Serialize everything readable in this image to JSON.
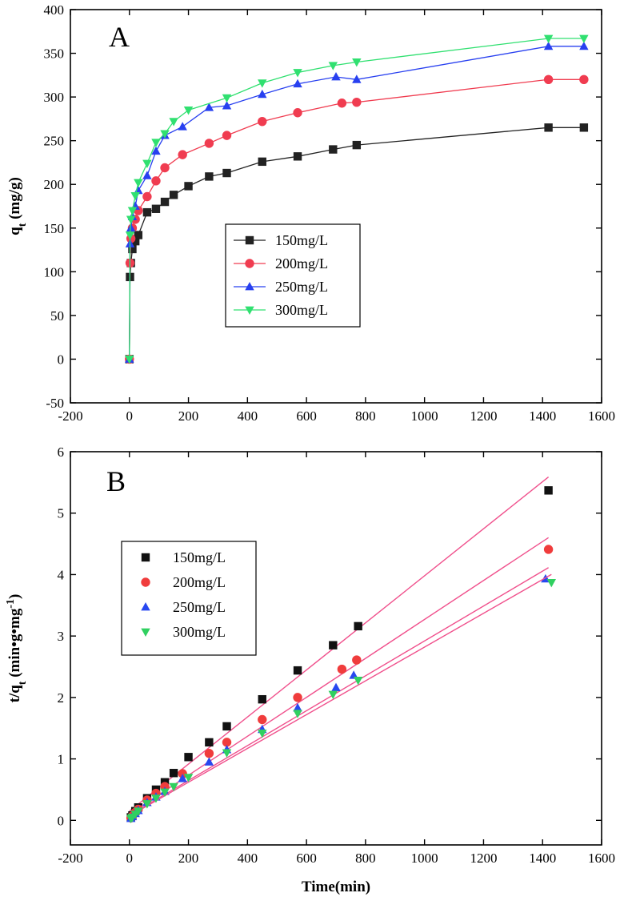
{
  "chart_data": [
    {
      "panel_label": "A",
      "type": "line",
      "xlabel": "",
      "ylabel_base": "q",
      "ylabel_sub": "t",
      "ylabel_unit": " (mg/g)",
      "xlim": [
        -200,
        1600
      ],
      "ylim": [
        -50,
        400
      ],
      "xticks": [
        -200,
        0,
        200,
        400,
        600,
        800,
        1000,
        1200,
        1400,
        1600
      ],
      "yticks": [
        -50,
        0,
        50,
        100,
        150,
        200,
        250,
        300,
        350,
        400
      ],
      "legend_position": "center",
      "series": [
        {
          "name": "150mg/L",
          "color": "#222222",
          "marker": "square",
          "x": [
            0,
            2,
            5,
            10,
            20,
            30,
            60,
            90,
            120,
            150,
            200,
            270,
            330,
            450,
            570,
            690,
            770,
            1420,
            1540
          ],
          "y": [
            0,
            94,
            110,
            126,
            135,
            142,
            168,
            172,
            180,
            188,
            198,
            209,
            213,
            226,
            232,
            240,
            245,
            265,
            265
          ]
        },
        {
          "name": "200mg/L",
          "color": "#f03c50",
          "marker": "circle",
          "x": [
            0,
            2,
            5,
            10,
            20,
            30,
            60,
            90,
            120,
            180,
            270,
            330,
            450,
            570,
            720,
            770,
            1420,
            1540
          ],
          "y": [
            0,
            110,
            138,
            150,
            160,
            170,
            186,
            204,
            219,
            234,
            247,
            256,
            272,
            282,
            293,
            294,
            320,
            320
          ]
        },
        {
          "name": "250mg/L",
          "color": "#2840f0",
          "marker": "triangle-up",
          "x": [
            0,
            2,
            5,
            10,
            20,
            30,
            60,
            90,
            120,
            180,
            270,
            330,
            450,
            570,
            700,
            770,
            1420,
            1540
          ],
          "y": [
            0,
            132,
            150,
            163,
            175,
            193,
            210,
            238,
            256,
            266,
            288,
            290,
            303,
            315,
            323,
            320,
            358,
            358
          ]
        },
        {
          "name": "300mg/L",
          "color": "#30e070",
          "marker": "triangle-down",
          "x": [
            0,
            2,
            5,
            10,
            20,
            30,
            60,
            90,
            120,
            150,
            200,
            330,
            450,
            570,
            690,
            770,
            1420,
            1540
          ],
          "y": [
            0,
            142,
            160,
            170,
            187,
            202,
            224,
            248,
            258,
            272,
            285,
            299,
            316,
            328,
            336,
            340,
            367,
            367
          ]
        }
      ]
    },
    {
      "panel_label": "B",
      "type": "scatter",
      "xlabel": "Time(min)",
      "ylabel_base": "t/q",
      "ylabel_sub": "t",
      "ylabel_unit": " (min•g•mg",
      "ylabel_sup": "-1",
      "ylabel_close": ")",
      "xlim": [
        -200,
        1600
      ],
      "ylim": [
        -0.4,
        6
      ],
      "xticks": [
        -200,
        0,
        200,
        400,
        600,
        800,
        1000,
        1200,
        1400,
        1600
      ],
      "yticks": [
        0,
        1,
        2,
        3,
        4,
        5,
        6
      ],
      "legend_position": "top-left",
      "fit_color": "#f0508c",
      "series": [
        {
          "name": "150mg/L",
          "color": "#111111",
          "marker": "square",
          "x": [
            5,
            10,
            20,
            30,
            60,
            90,
            120,
            150,
            200,
            270,
            330,
            450,
            570,
            690,
            775,
            1420
          ],
          "y": [
            0.05,
            0.08,
            0.15,
            0.21,
            0.36,
            0.5,
            0.62,
            0.77,
            1.03,
            1.27,
            1.53,
            1.97,
            2.44,
            2.85,
            3.16,
            5.37
          ],
          "fit_intercept": 0.15,
          "fit_slope": 0.00383,
          "fit_xmax": 1420
        },
        {
          "name": "200mg/L",
          "color": "#f03c3c",
          "marker": "circle",
          "x": [
            5,
            10,
            20,
            30,
            60,
            90,
            120,
            180,
            270,
            330,
            450,
            570,
            720,
            770,
            1420
          ],
          "y": [
            0.04,
            0.07,
            0.13,
            0.18,
            0.33,
            0.44,
            0.55,
            0.76,
            1.09,
            1.27,
            1.64,
            2.0,
            2.46,
            2.61,
            4.41
          ],
          "fit_intercept": 0.1,
          "fit_slope": 0.00317,
          "fit_xmax": 1420
        },
        {
          "name": "250mg/L",
          "color": "#2848f0",
          "marker": "triangle-up",
          "x": [
            5,
            10,
            20,
            30,
            60,
            90,
            120,
            180,
            270,
            330,
            450,
            570,
            700,
            760,
            1410
          ],
          "y": [
            0.03,
            0.06,
            0.11,
            0.16,
            0.29,
            0.38,
            0.47,
            0.68,
            0.95,
            1.15,
            1.48,
            1.83,
            2.16,
            2.36,
            3.93
          ],
          "fit_intercept": 0.08,
          "fit_slope": 0.00284,
          "fit_xmax": 1420
        },
        {
          "name": "300mg/L",
          "color": "#30d060",
          "marker": "triangle-down",
          "x": [
            5,
            10,
            20,
            30,
            60,
            90,
            120,
            150,
            200,
            330,
            450,
            570,
            690,
            775,
            1430
          ],
          "y": [
            0.03,
            0.05,
            0.1,
            0.15,
            0.27,
            0.36,
            0.46,
            0.55,
            0.7,
            1.1,
            1.42,
            1.74,
            2.05,
            2.28,
            3.87
          ],
          "fit_intercept": 0.07,
          "fit_slope": 0.00275,
          "fit_xmax": 1430
        }
      ]
    }
  ]
}
